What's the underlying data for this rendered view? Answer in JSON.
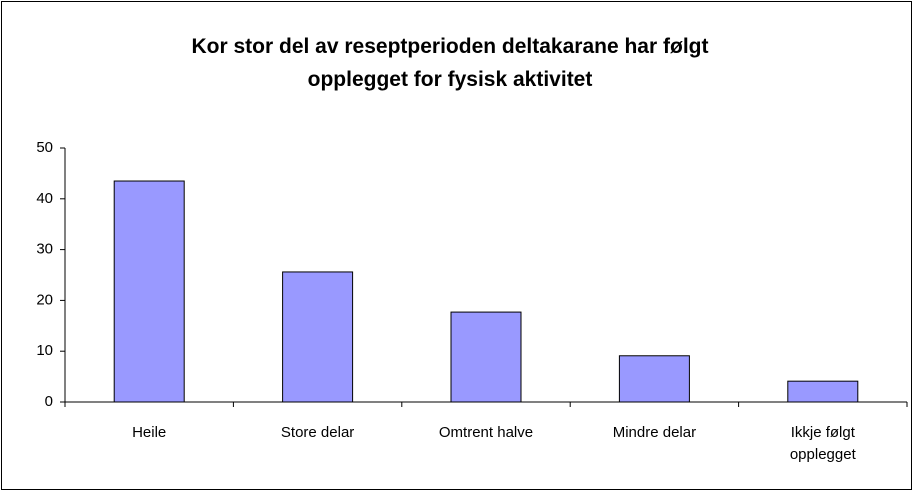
{
  "chart_data": {
    "type": "bar",
    "title": "Kor stor del av reseptperioden deltakarane har følgt opplegget for fysisk aktivitet",
    "categories": [
      "Heile",
      "Store delar",
      "Omtrent halve",
      "Mindre delar",
      "Ikkje følgt opplegget"
    ],
    "values": [
      43.5,
      25.6,
      17.7,
      9.1,
      4.1
    ],
    "color": "#9999ff",
    "ylim": [
      0,
      50
    ],
    "yticks": [
      0,
      10,
      20,
      30,
      40,
      50
    ],
    "grid": false
  }
}
